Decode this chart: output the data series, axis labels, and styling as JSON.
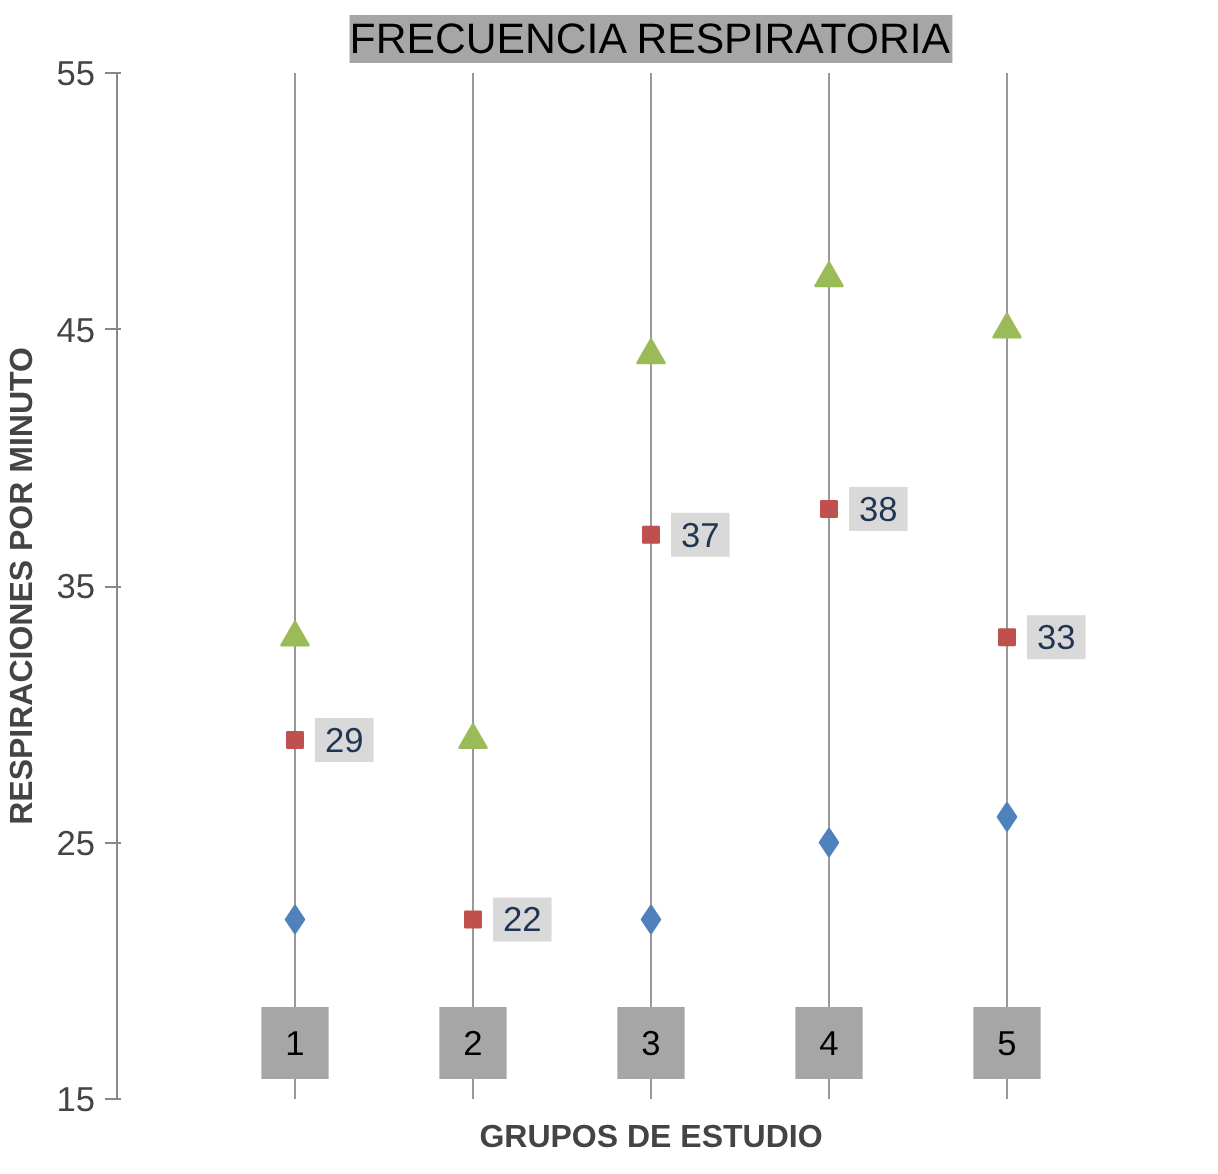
{
  "chart_data": {
    "type": "scatter",
    "title": "FRECUENCIA RESPIRATORIA",
    "xlabel": "GRUPOS DE ESTUDIO",
    "ylabel": "RESPIRACIONES POR MINUTO",
    "categories": [
      "1",
      "2",
      "3",
      "4",
      "5"
    ],
    "ylim": [
      15,
      55
    ],
    "yticks": [
      15,
      25,
      35,
      45,
      55
    ],
    "grid": "x",
    "series": [
      {
        "color": "#9bbb59",
        "marker": "triangle",
        "values": [
          33,
          29,
          44,
          47,
          45
        ]
      },
      {
        "color": "#4f81bd",
        "marker": "diamond",
        "values": [
          22,
          null,
          22,
          25,
          26
        ]
      },
      {
        "color": "#c0504d",
        "marker": "square",
        "values": [
          29,
          22,
          37,
          38,
          33
        ],
        "data_labels": true
      }
    ]
  }
}
